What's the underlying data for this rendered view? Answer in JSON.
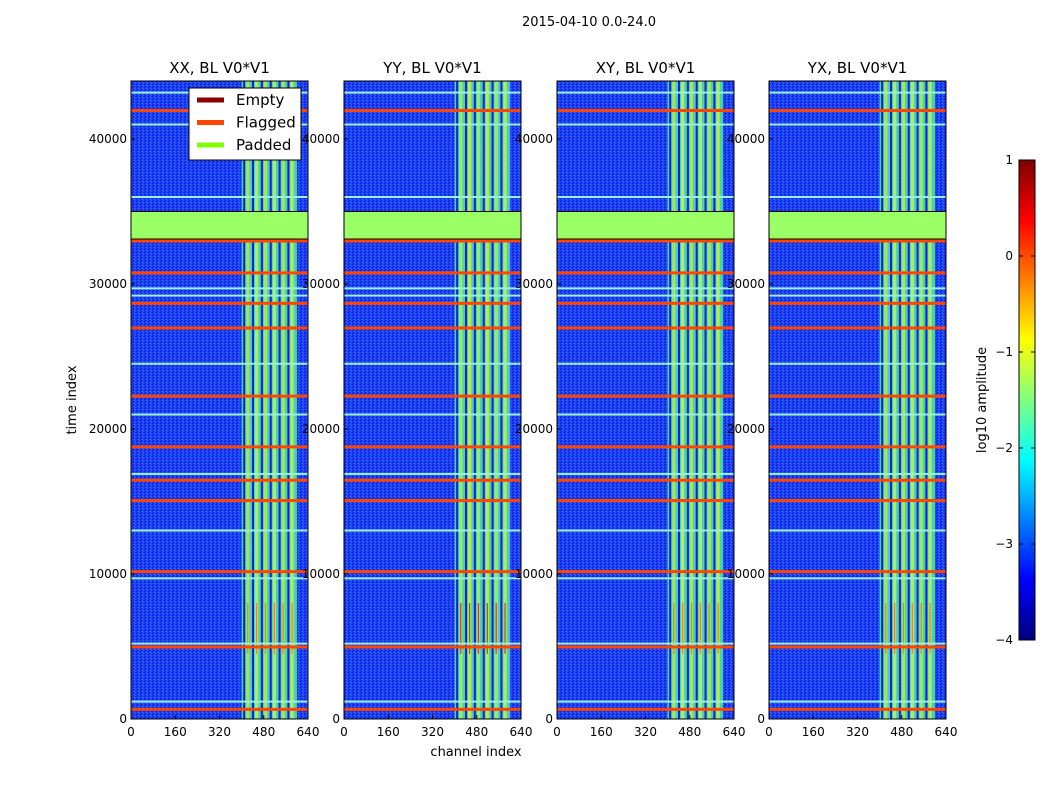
{
  "suptitle": "2015-04-10 0.0-24.0",
  "chart_data": {
    "type": "heatmap",
    "title": "2015-04-10 0.0-24.0",
    "xlabel": "channel index",
    "ylabel": "time index",
    "xlim": [
      0,
      640
    ],
    "ylim": [
      0,
      44000
    ],
    "xticks": [
      "0",
      "160",
      "320",
      "480",
      "640"
    ],
    "yticks": [
      "0",
      "10000",
      "20000",
      "30000",
      "40000"
    ],
    "panels": [
      {
        "title": "XX, BL V0*V1"
      },
      {
        "title": "YY, BL V0*V1"
      },
      {
        "title": "XY, BL V0*V1"
      },
      {
        "title": "YX, BL V0*V1"
      }
    ],
    "legend": {
      "location": "top-right of first panel",
      "entries": [
        {
          "label": "Empty",
          "color": "#8b0000"
        },
        {
          "label": "Flagged",
          "color": "#ff4500"
        },
        {
          "label": "Padded",
          "color": "#7fff00"
        }
      ]
    },
    "colorbar": {
      "label": "log10 amplitude",
      "range": [
        -4,
        1
      ],
      "ticks": [
        "1",
        "0",
        "−1",
        "−2",
        "−3",
        "−4"
      ],
      "colormap": "jet"
    },
    "padded_time_range": [
      33100,
      35000
    ],
    "signal_channel_range": [
      400,
      600
    ],
    "signal_columns": [
      420,
      452,
      484,
      516,
      548,
      580
    ],
    "flagged_time_rows": [
      700,
      5000,
      10200,
      15100,
      16500,
      18800,
      22300,
      27000,
      28700,
      30800,
      33000,
      42000
    ],
    "padded_time_rows": [
      1200,
      5200,
      9700,
      13000,
      16900,
      21000,
      24500,
      29200,
      29700,
      36000,
      41000,
      43200
    ]
  }
}
